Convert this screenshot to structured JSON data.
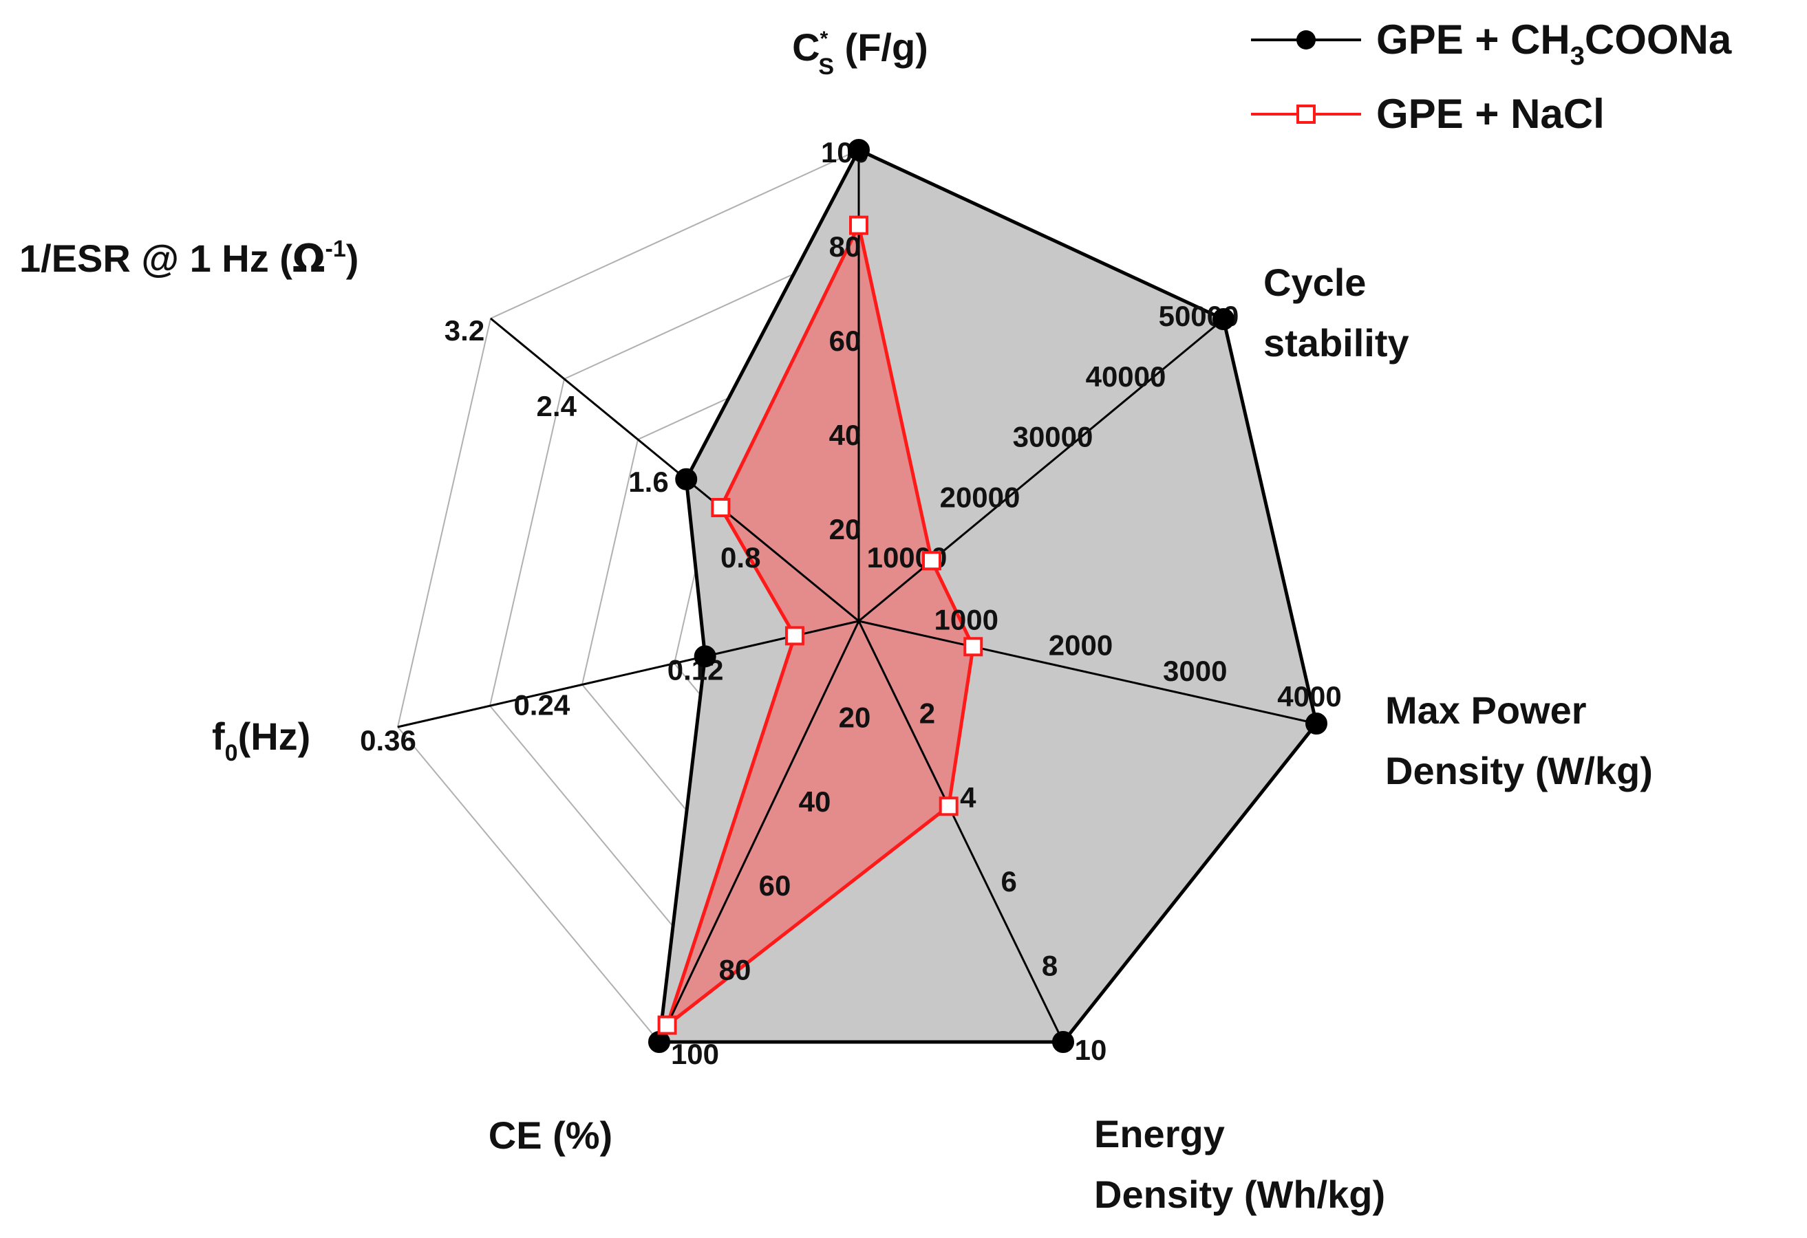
{
  "chart_data": {
    "type": "radar",
    "title": "",
    "colors": {
      "series1_line": "#000000",
      "series1_fill": "#c8c8c8",
      "series2_line": "#ff1a1a",
      "series2_fill": "#e98080",
      "grid": "#b0b0b0"
    },
    "axes": [
      {
        "key": "cs",
        "label": "C",
        "label_sup": "*",
        "label_sub": "S",
        "label_tail": " (F/g)",
        "ticks": [
          "100",
          "80",
          "60",
          "40",
          "20"
        ],
        "tick_values": [
          100,
          80,
          60,
          40,
          20
        ],
        "max": 100
      },
      {
        "key": "cycle",
        "label_lines": [
          "Cycle",
          "stability"
        ],
        "ticks": [
          "50000",
          "40000",
          "30000",
          "20000",
          "10000"
        ],
        "tick_values": [
          50000,
          40000,
          30000,
          20000,
          10000
        ],
        "max": 50000
      },
      {
        "key": "power",
        "label_lines": [
          "Max Power",
          "Density (W/kg)"
        ],
        "ticks": [
          "4000",
          "3000",
          "2000",
          "1000"
        ],
        "tick_values": [
          4000,
          3000,
          2000,
          1000
        ],
        "max": 4000
      },
      {
        "key": "energy",
        "label_lines": [
          "Energy",
          "Density (Wh/kg)"
        ],
        "ticks": [
          "10",
          "8",
          "6",
          "4",
          "2"
        ],
        "tick_values": [
          10,
          8,
          6,
          4,
          2
        ],
        "max": 10
      },
      {
        "key": "ce",
        "label": "CE (%)",
        "ticks": [
          "100",
          "80",
          "60",
          "40",
          "20"
        ],
        "tick_values": [
          100,
          80,
          60,
          40,
          20
        ],
        "max": 100
      },
      {
        "key": "f0",
        "label": "f",
        "label_sub": "0",
        "label_tail": "(Hz)",
        "ticks": [
          "0.36",
          "0.24",
          "0.12"
        ],
        "tick_values": [
          0.36,
          0.24,
          0.12
        ],
        "max": 0.36
      },
      {
        "key": "esr",
        "label": "1/ESR @ 1 Hz (",
        "label_omega": "Ω",
        "label_sup": "-1",
        "label_tail": ")",
        "ticks": [
          "3.2",
          "2.4",
          "1.6",
          "0.8"
        ],
        "tick_values": [
          3.2,
          2.4,
          1.6,
          0.8
        ],
        "max": 3.2
      }
    ],
    "series": [
      {
        "name": "GPE + CH3COONa",
        "legend_main": "GPE + CH",
        "legend_sub": "3",
        "legend_tail": "COONa",
        "marker": "filled-circle",
        "values": [
          100,
          50000,
          4000,
          10,
          100,
          0.12,
          1.5
        ]
      },
      {
        "name": "GPE + NaCl",
        "legend_main": "GPE + NaCl",
        "marker": "open-square",
        "values": [
          84,
          10000,
          1000,
          4.4,
          96,
          0.05,
          1.2
        ]
      }
    ]
  }
}
